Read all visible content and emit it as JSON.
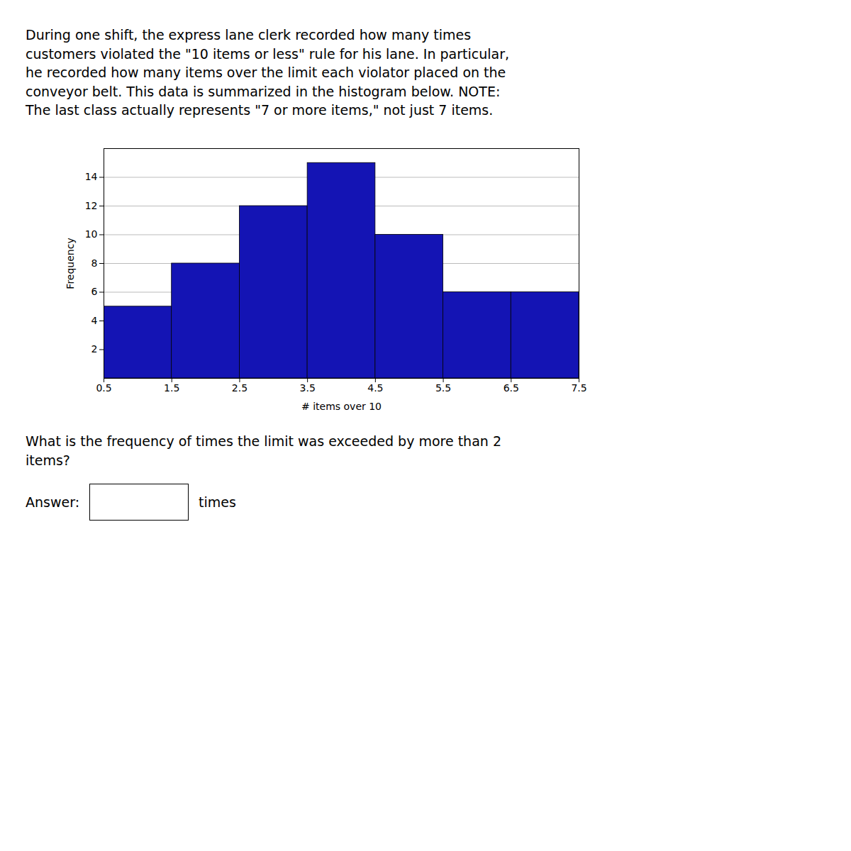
{
  "chart_data": {
    "type": "histogram",
    "annotations": [
      "During one shift, the express lane clerk recorded how many times\ncustomers violated the \"10 items or less\" rule for his lane. In particular,\nhe recorded how many items over the limit each violator placed on the\nconveyor belt. This data is summarized in the histogram below. NOTE:\nThe last class actually represents \"7 or more items,\" not just 7 items.",
      "What is the frequency of times the limit was exceeded by more than 2\nitems?",
      "Answer:",
      "times"
    ],
    "xlabel": "# items over 10",
    "ylabel": "Frequency",
    "bins": [
      0.5,
      1.5,
      2.5,
      3.5,
      4.5,
      5.5,
      6.5,
      7.5
    ],
    "values": [
      5,
      8,
      12,
      15,
      10,
      6,
      6
    ],
    "color": "#1414b4",
    "xlim": [
      0.5,
      7.5
    ],
    "xticks": [
      0.5,
      1.5,
      2.5,
      3.5,
      4.5,
      5.5,
      6.5,
      7.5
    ],
    "ylim": [
      0,
      16
    ],
    "yticks": [
      2,
      4,
      6,
      8,
      10,
      12,
      14
    ],
    "grid": true
  }
}
